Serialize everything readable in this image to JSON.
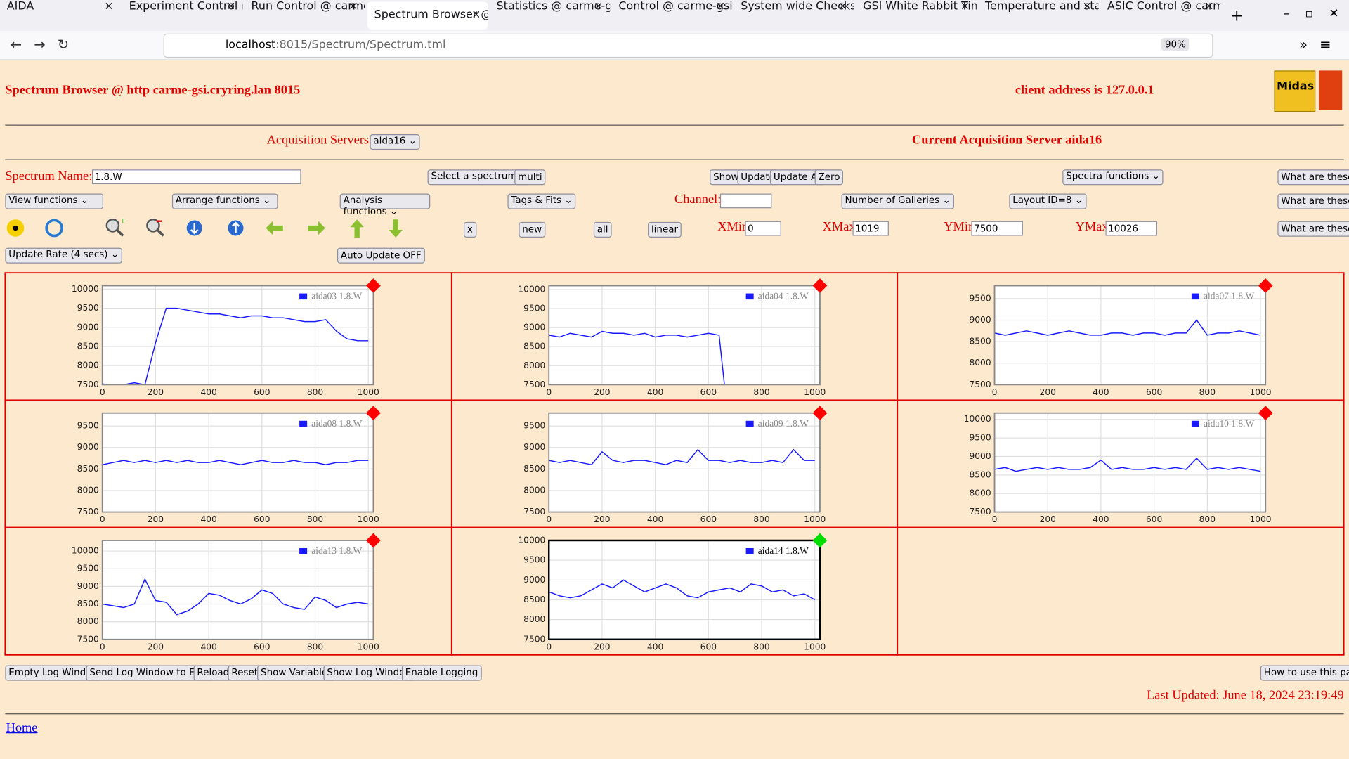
{
  "browser": {
    "tabs": [
      "AIDA",
      "Experiment Control @",
      "Run Control @ carme",
      "Spectrum Browser @",
      "Statistics @ carme-g",
      "Control @ carme-gsi",
      "System wide Checks (",
      "GSI White Rabbit Tim",
      "Temperature and stat",
      "ASIC Control @ carm"
    ],
    "url_host": "localhost",
    "url_path": ":8015/Spectrum/Spectrum.tml",
    "zoom": "90%"
  },
  "header": {
    "title": "Spectrum Browser @ http carme-gsi.cryring.lan 8015",
    "client": "client address is 127.0.0.1"
  },
  "acquisition": {
    "label": "Acquisition Servers",
    "selected": "aida16",
    "current": "Current Acquisition Server aida16"
  },
  "controls": {
    "spectrum_name_label": "Spectrum Name:",
    "spectrum_name": "1.8.W",
    "select_spectrum": "Select a spectrum",
    "multi": "multi",
    "show": "Show",
    "update": "Update",
    "update_all": "Update All",
    "zero": "Zero",
    "spectra_functions": "Spectra functions",
    "what": [
      "What are these?",
      "What are these?",
      "What are these?"
    ],
    "view_functions": "View functions",
    "arrange_functions": "Arrange functions",
    "analysis_functions": "Analysis functions",
    "tags_fits": "Tags & Fits",
    "channel_label": "Channel:",
    "galleries": "Number of Galleries",
    "layout": "Layout ID=8",
    "x": "x",
    "new": "new",
    "all": "all",
    "linear": "linear",
    "xmin": {
      "label": "XMin",
      "value": 0
    },
    "xmax": {
      "label": "XMax",
      "value": 1019
    },
    "ymin": {
      "label": "YMin",
      "value": 7500
    },
    "ymax": {
      "label": "YMax",
      "value": 10026
    },
    "update_rate": "Update Rate (4 secs)",
    "auto_update": "Auto Update OFF"
  },
  "chart_data": [
    {
      "type": "line",
      "x": [
        0,
        40,
        80,
        120,
        160,
        200,
        240,
        280,
        320,
        360,
        400,
        440,
        480,
        520,
        560,
        600,
        640,
        680,
        720,
        760,
        800,
        840,
        880,
        920,
        960,
        1000
      ],
      "series": [
        {
          "name": "aida03 1.8.W",
          "color": "#1a1aff",
          "values": [
            7520,
            7480,
            7500,
            7550,
            7500,
            8600,
            9500,
            9500,
            9450,
            9400,
            9350,
            9350,
            9300,
            9250,
            9300,
            9300,
            9250,
            9250,
            9200,
            9150,
            9150,
            9200,
            8900,
            8700,
            8650,
            8650
          ]
        }
      ],
      "xlim": [
        0,
        1019
      ],
      "ylim": [
        7500,
        10090
      ],
      "xticks": [
        0,
        200,
        400,
        600,
        800,
        1000
      ],
      "yticks": [
        7500,
        8000,
        8500,
        9000,
        9500,
        10000
      ],
      "marker_color": "#ff0000",
      "frame_color": "#888888"
    },
    {
      "type": "line",
      "x": [
        0,
        40,
        80,
        120,
        160,
        200,
        240,
        280,
        320,
        360,
        400,
        440,
        480,
        520,
        560,
        600,
        640,
        660
      ],
      "series": [
        {
          "name": "aida04 1.8.W",
          "color": "#1a1aff",
          "values": [
            8800,
            8750,
            8850,
            8800,
            8750,
            8900,
            8850,
            8850,
            8800,
            8850,
            8750,
            8800,
            8800,
            8750,
            8800,
            8850,
            8800,
            7500
          ]
        }
      ],
      "xlim": [
        0,
        1019
      ],
      "ylim": [
        7500,
        10100
      ],
      "xticks": [
        0,
        200,
        400,
        600,
        800,
        1000
      ],
      "yticks": [
        7500,
        8000,
        8500,
        9000,
        9500,
        10000
      ],
      "marker_color": "#ff0000",
      "frame_color": "#888888"
    },
    {
      "type": "line",
      "x": [
        0,
        40,
        80,
        120,
        160,
        200,
        240,
        280,
        320,
        360,
        400,
        440,
        480,
        520,
        560,
        600,
        640,
        680,
        720,
        760,
        800,
        840,
        880,
        920,
        960,
        1000
      ],
      "series": [
        {
          "name": "aida07 1.8.W",
          "color": "#1a1aff",
          "values": [
            8700,
            8650,
            8700,
            8750,
            8700,
            8650,
            8700,
            8750,
            8700,
            8650,
            8650,
            8700,
            8700,
            8650,
            8700,
            8700,
            8650,
            8700,
            8700,
            9000,
            8650,
            8700,
            8700,
            8750,
            8700,
            8650
          ]
        }
      ],
      "xlim": [
        0,
        1019
      ],
      "ylim": [
        7500,
        9800
      ],
      "xticks": [
        0,
        200,
        400,
        600,
        800,
        1000
      ],
      "yticks": [
        7500,
        8000,
        8500,
        9000,
        9500
      ],
      "marker_color": "#ff0000",
      "frame_color": "#888888"
    },
    {
      "type": "line",
      "x": [
        0,
        40,
        80,
        120,
        160,
        200,
        240,
        280,
        320,
        360,
        400,
        440,
        480,
        520,
        560,
        600,
        640,
        680,
        720,
        760,
        800,
        840,
        880,
        920,
        960,
        1000
      ],
      "series": [
        {
          "name": "aida08 1.8.W",
          "color": "#1a1aff",
          "values": [
            8600,
            8650,
            8700,
            8650,
            8700,
            8650,
            8700,
            8650,
            8700,
            8650,
            8650,
            8700,
            8650,
            8600,
            8650,
            8700,
            8650,
            8650,
            8700,
            8650,
            8650,
            8600,
            8650,
            8650,
            8700,
            8700
          ]
        }
      ],
      "xlim": [
        0,
        1019
      ],
      "ylim": [
        7500,
        9800
      ],
      "xticks": [
        0,
        200,
        400,
        600,
        800,
        1000
      ],
      "yticks": [
        7500,
        8000,
        8500,
        9000,
        9500
      ],
      "marker_color": "#ff0000",
      "frame_color": "#888888"
    },
    {
      "type": "line",
      "x": [
        0,
        40,
        80,
        120,
        160,
        200,
        240,
        280,
        320,
        360,
        400,
        440,
        480,
        520,
        560,
        600,
        640,
        680,
        720,
        760,
        800,
        840,
        880,
        920,
        960,
        1000
      ],
      "series": [
        {
          "name": "aida09 1.8.W",
          "color": "#1a1aff",
          "values": [
            8700,
            8650,
            8700,
            8650,
            8600,
            8900,
            8700,
            8650,
            8700,
            8700,
            8650,
            8600,
            8700,
            8650,
            8950,
            8700,
            8700,
            8650,
            8700,
            8650,
            8650,
            8700,
            8650,
            8950,
            8700,
            8700
          ]
        }
      ],
      "xlim": [
        0,
        1019
      ],
      "ylim": [
        7500,
        9800
      ],
      "xticks": [
        0,
        200,
        400,
        600,
        800,
        1000
      ],
      "yticks": [
        7500,
        8000,
        8500,
        9000,
        9500
      ],
      "marker_color": "#ff0000",
      "frame_color": "#888888"
    },
    {
      "type": "line",
      "x": [
        0,
        40,
        80,
        120,
        160,
        200,
        240,
        280,
        320,
        360,
        400,
        440,
        480,
        520,
        560,
        600,
        640,
        680,
        720,
        760,
        800,
        840,
        880,
        920,
        960,
        1000
      ],
      "series": [
        {
          "name": "aida10 1.8.W",
          "color": "#1a1aff",
          "values": [
            8650,
            8700,
            8600,
            8650,
            8700,
            8650,
            8700,
            8650,
            8650,
            8700,
            8900,
            8650,
            8700,
            8650,
            8650,
            8700,
            8650,
            8700,
            8650,
            8950,
            8650,
            8700,
            8650,
            8700,
            8650,
            8600
          ]
        }
      ],
      "xlim": [
        0,
        1019
      ],
      "ylim": [
        7500,
        10170
      ],
      "xticks": [
        0,
        200,
        400,
        600,
        800,
        1000
      ],
      "yticks": [
        7500,
        8000,
        8500,
        9000,
        9500,
        10000
      ],
      "marker_color": "#ff0000",
      "frame_color": "#888888"
    },
    {
      "type": "line",
      "x": [
        0,
        40,
        80,
        120,
        160,
        200,
        240,
        280,
        320,
        360,
        400,
        440,
        480,
        520,
        560,
        600,
        640,
        680,
        720,
        760,
        800,
        840,
        880,
        920,
        960,
        1000
      ],
      "series": [
        {
          "name": "aida13 1.8.W",
          "color": "#1a1aff",
          "values": [
            8500,
            8450,
            8400,
            8500,
            9200,
            8600,
            8550,
            8200,
            8300,
            8500,
            8800,
            8750,
            8600,
            8500,
            8650,
            8900,
            8800,
            8500,
            8400,
            8350,
            8700,
            8600,
            8400,
            8500,
            8550,
            8500
          ]
        }
      ],
      "xlim": [
        0,
        1019
      ],
      "ylim": [
        7500,
        10300
      ],
      "xticks": [
        0,
        200,
        400,
        600,
        800,
        1000
      ],
      "yticks": [
        7500,
        8000,
        8500,
        9000,
        9500,
        10000
      ],
      "marker_color": "#ff0000",
      "frame_color": "#888888"
    },
    {
      "type": "line",
      "x": [
        0,
        40,
        80,
        120,
        160,
        200,
        240,
        280,
        320,
        360,
        400,
        440,
        480,
        520,
        560,
        600,
        640,
        680,
        720,
        760,
        800,
        840,
        880,
        920,
        960,
        1000
      ],
      "series": [
        {
          "name": "aida14 1.8.W",
          "color": "#1a1aff",
          "values": [
            8700,
            8600,
            8550,
            8600,
            8750,
            8900,
            8800,
            9000,
            8850,
            8700,
            8800,
            8900,
            8800,
            8600,
            8550,
            8700,
            8750,
            8800,
            8700,
            8900,
            8850,
            8700,
            8750,
            8600,
            8650,
            8500
          ]
        }
      ],
      "xlim": [
        0,
        1019
      ],
      "ylim": [
        7500,
        10000
      ],
      "xticks": [
        0,
        200,
        400,
        600,
        800,
        1000
      ],
      "yticks": [
        7500,
        8000,
        8500,
        9000,
        9500,
        10000
      ],
      "marker_color": "#00dd00",
      "frame_color": "#000000"
    }
  ],
  "footer": {
    "buttons": [
      "Empty Log Window",
      "Send Log Window to ELog",
      "Reload",
      "Reset",
      "Show Variables",
      "Show Log Window",
      "Enable Logging"
    ],
    "help": "How to use this page",
    "last_updated": "Last Updated: June 18, 2024 23:19:49",
    "home": "Home"
  }
}
